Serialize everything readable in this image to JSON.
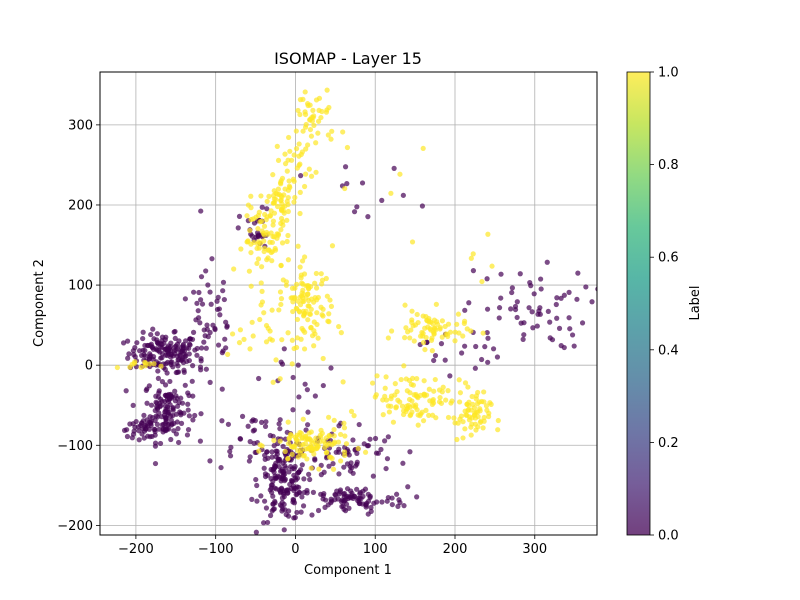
{
  "chart_data": {
    "type": "scatter",
    "title": "ISOMAP - Layer 15",
    "xlabel": "Component 1",
    "ylabel": "Component 2",
    "xlim": [
      -245,
      378
    ],
    "ylim": [
      -212,
      366
    ],
    "xticks": [
      -200,
      -100,
      0,
      100,
      200,
      300
    ],
    "yticks": [
      -200,
      -100,
      0,
      100,
      200,
      300
    ],
    "grid": true,
    "colorbar": {
      "label": "Label",
      "range": [
        0.0,
        1.0
      ],
      "ticks": [
        "0.0",
        "0.2",
        "0.4",
        "0.6",
        "0.8",
        "1.0"
      ],
      "colormap": [
        "#440154",
        "#482878",
        "#3e4989",
        "#31688e",
        "#26828e",
        "#1f9e89",
        "#35b779",
        "#6ece58",
        "#b5de2b",
        "#fde725"
      ]
    },
    "series": [
      {
        "label_value": 0,
        "color": "#440154",
        "clusters": [
          {
            "cx": -165,
            "cy": 15,
            "sx": 22,
            "sy": 12,
            "n": 150
          },
          {
            "cx": -160,
            "cy": -55,
            "sx": 15,
            "sy": 20,
            "n": 130
          },
          {
            "cx": -190,
            "cy": -80,
            "sx": 15,
            "sy": 5,
            "n": 40
          },
          {
            "cx": -110,
            "cy": 45,
            "sx": 20,
            "sy": 45,
            "n": 60
          },
          {
            "cx": -15,
            "cy": -145,
            "sx": 15,
            "sy": 25,
            "n": 170
          },
          {
            "cx": 70,
            "cy": -168,
            "sx": 35,
            "sy": 8,
            "n": 90
          },
          {
            "cx": 60,
            "cy": -110,
            "sx": 35,
            "sy": 20,
            "n": 70
          },
          {
            "cx": -50,
            "cy": -90,
            "sx": 30,
            "sy": 20,
            "n": 40
          },
          {
            "cx": 290,
            "cy": 70,
            "sx": 40,
            "sy": 25,
            "n": 60
          },
          {
            "cx": 205,
            "cy": 20,
            "sx": 25,
            "sy": 15,
            "n": 20
          },
          {
            "cx": -50,
            "cy": 165,
            "sx": 10,
            "sy": 15,
            "n": 25
          },
          {
            "cx": 10,
            "cy": -20,
            "sx": 25,
            "sy": 25,
            "n": 15
          },
          {
            "cx": 90,
            "cy": 200,
            "sx": 40,
            "sy": 25,
            "n": 12
          }
        ]
      },
      {
        "label_value": 1,
        "color": "#fde725",
        "clusters": [
          {
            "cx": 25,
            "cy": 310,
            "sx": 15,
            "sy": 20,
            "n": 40
          },
          {
            "cx": 0,
            "cy": 255,
            "sx": 12,
            "sy": 15,
            "n": 30
          },
          {
            "cx": -20,
            "cy": 205,
            "sx": 12,
            "sy": 15,
            "n": 50
          },
          {
            "cx": -35,
            "cy": 155,
            "sx": 15,
            "sy": 20,
            "n": 70
          },
          {
            "cx": 15,
            "cy": 75,
            "sx": 15,
            "sy": 25,
            "n": 90
          },
          {
            "cx": -25,
            "cy": 50,
            "sx": 30,
            "sy": 30,
            "n": 40
          },
          {
            "cx": 20,
            "cy": -100,
            "sx": 25,
            "sy": 12,
            "n": 110
          },
          {
            "cx": 170,
            "cy": 45,
            "sx": 22,
            "sy": 12,
            "n": 70
          },
          {
            "cx": 150,
            "cy": -40,
            "sx": 30,
            "sy": 15,
            "n": 100
          },
          {
            "cx": 220,
            "cy": -65,
            "sx": 12,
            "sy": 15,
            "n": 60
          },
          {
            "cx": -200,
            "cy": 0,
            "sx": 12,
            "sy": 3,
            "n": 12
          },
          {
            "cx": 60,
            "cy": 170,
            "sx": 50,
            "sy": 50,
            "n": 12
          },
          {
            "cx": 230,
            "cy": 130,
            "sx": 20,
            "sy": 20,
            "n": 5
          }
        ]
      }
    ]
  }
}
